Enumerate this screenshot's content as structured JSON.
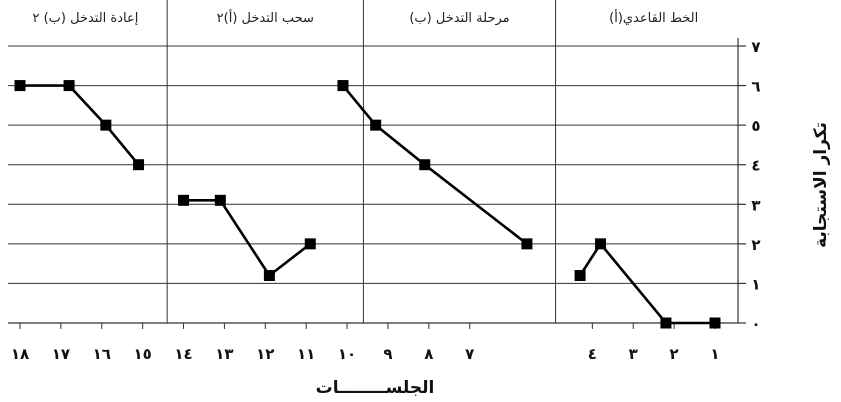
{
  "chart_data": {
    "type": "line",
    "xlabel": "الجلســــــــات",
    "ylabel": "تكرار الاستجابة",
    "ylim": [
      0,
      7
    ],
    "xlim": [
      1,
      18
    ],
    "y_ticks": [
      "٠",
      "١",
      "٢",
      "٣",
      "٤",
      "٥",
      "٦",
      "٧"
    ],
    "x_ticks": [
      {
        "x": 1,
        "label": "١"
      },
      {
        "x": 2,
        "label": "٢"
      },
      {
        "x": 3,
        "label": "٣"
      },
      {
        "x": 4,
        "label": "٤"
      },
      {
        "x": 7,
        "label": "٧"
      },
      {
        "x": 8,
        "label": "٨"
      },
      {
        "x": 9,
        "label": "٩"
      },
      {
        "x": 10,
        "label": "١٠"
      },
      {
        "x": 11,
        "label": "١١"
      },
      {
        "x": 12,
        "label": "١٢"
      },
      {
        "x": 13,
        "label": "١٣"
      },
      {
        "x": 14,
        "label": "١٤"
      },
      {
        "x": 15,
        "label": "١٥"
      },
      {
        "x": 16,
        "label": "١٦"
      },
      {
        "x": 17,
        "label": "١٧"
      },
      {
        "x": 18,
        "label": "١٨"
      }
    ],
    "phase_boundaries": [
      4.9,
      9.6,
      14.4
    ],
    "phases": [
      {
        "title": "الخط القاعدي(أ)",
        "x": [
          1.0,
          2.2,
          3.8,
          4.3
        ],
        "y": [
          0,
          0,
          2,
          1.2
        ]
      },
      {
        "title": "مرحلة التدخل (ب)",
        "x": [
          5.6,
          8.1,
          9.3,
          10.1
        ],
        "y": [
          2,
          4,
          5,
          6
        ]
      },
      {
        "title": "سحب التدخل (أ)٢",
        "x": [
          10.9,
          11.9,
          13.1,
          14.0
        ],
        "y": [
          2,
          1.2,
          3.1,
          3.1
        ]
      },
      {
        "title": "إعادة التدخل (ب) ٢",
        "x": [
          15.1,
          15.9,
          16.8,
          18.0
        ],
        "y": [
          4,
          5,
          6,
          6
        ]
      }
    ],
    "grid": true,
    "legend": "none"
  }
}
